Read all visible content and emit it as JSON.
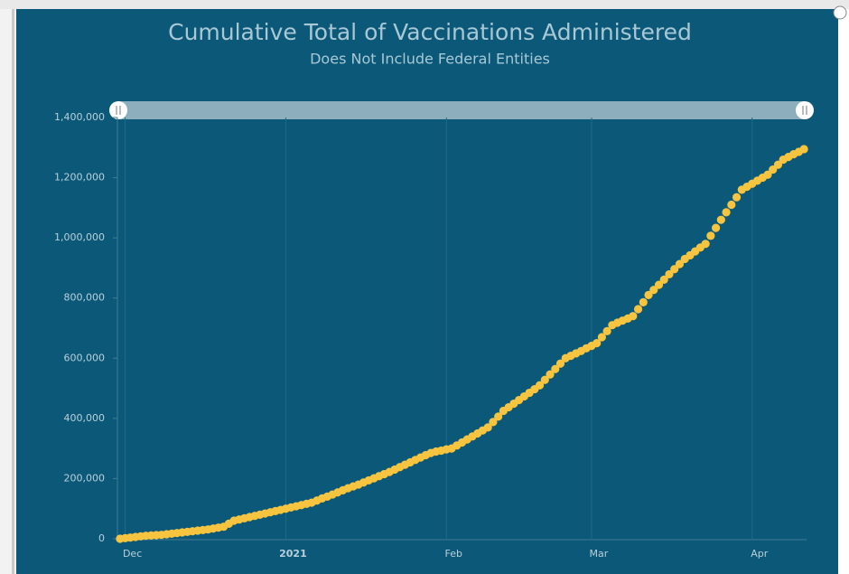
{
  "chart_data": {
    "type": "scatter",
    "title": "Cumulative Total of Vaccinations Administered",
    "subtitle": "Does Not Include Federal Entities",
    "color": "#f7c440",
    "x": [
      0,
      1,
      2,
      3,
      4,
      5,
      6,
      7,
      8,
      9,
      10,
      11,
      12,
      13,
      14,
      15,
      16,
      17,
      18,
      19,
      20,
      21,
      22,
      23,
      24,
      25,
      26,
      27,
      28,
      29,
      30,
      31,
      32,
      33,
      34,
      35,
      36,
      37,
      38,
      39,
      40,
      41,
      42,
      43,
      44,
      45,
      46,
      47,
      48,
      49,
      50,
      51,
      52,
      53,
      54,
      55,
      56,
      57,
      58,
      59,
      60,
      61,
      62,
      63,
      64,
      65,
      66,
      67,
      68,
      69,
      70,
      71,
      72,
      73,
      74,
      75,
      76,
      77,
      78,
      79,
      80,
      81,
      82,
      83,
      84,
      85,
      86,
      87,
      88,
      89,
      90,
      91,
      92,
      93,
      94,
      95,
      96,
      97,
      98,
      99,
      100,
      101,
      102,
      103,
      104,
      105,
      106,
      107,
      108,
      109,
      110,
      111,
      112,
      113,
      114,
      115,
      116,
      117,
      118,
      119,
      120,
      121,
      122,
      123,
      124,
      125,
      126,
      127,
      128,
      129,
      130,
      131,
      132
    ],
    "values": [
      0,
      2000,
      4000,
      6000,
      8000,
      10000,
      11000,
      12000,
      13000,
      15000,
      17000,
      19000,
      21000,
      23000,
      25000,
      27000,
      29000,
      31000,
      34000,
      37000,
      40000,
      50000,
      60000,
      64000,
      68000,
      72000,
      76000,
      80000,
      84000,
      88000,
      92000,
      96000,
      100000,
      104000,
      108000,
      112000,
      116000,
      120000,
      127000,
      134000,
      140000,
      147000,
      154000,
      161000,
      168000,
      174000,
      180000,
      187000,
      194000,
      201000,
      208000,
      215000,
      222000,
      230000,
      238000,
      246000,
      254000,
      262000,
      270000,
      278000,
      285000,
      290000,
      293000,
      297000,
      300000,
      310000,
      320000,
      330000,
      340000,
      350000,
      360000,
      370000,
      388000,
      406000,
      425000,
      437000,
      449000,
      461000,
      473000,
      485000,
      497000,
      510000,
      528000,
      546000,
      564000,
      582000,
      600000,
      608000,
      616000,
      624000,
      633000,
      641000,
      650000,
      670000,
      690000,
      710000,
      718000,
      725000,
      732000,
      740000,
      763000,
      786000,
      810000,
      827000,
      844000,
      861000,
      879000,
      896000,
      913000,
      930000,
      942000,
      955000,
      968000,
      980000,
      1007000,
      1033000,
      1060000,
      1085000,
      1110000,
      1135000,
      1160000,
      1170000,
      1180000,
      1190000,
      1200000,
      1210000,
      1227000,
      1243000,
      1260000,
      1269000,
      1278000,
      1286000,
      1295000
    ],
    "xlim": [
      -0.5,
      132.5
    ],
    "xticks": [
      {
        "value": 1,
        "label": "Dec"
      },
      {
        "value": 32,
        "label": "2021"
      },
      {
        "value": 63,
        "label": "Feb"
      },
      {
        "value": 91,
        "label": "Mar"
      },
      {
        "value": 122,
        "label": "Apr"
      }
    ],
    "ylim": [
      0,
      1400000
    ],
    "yticks": [
      0,
      {
        "value": 200000,
        "label": "200,000"
      },
      {
        "value": 400000,
        "label": "400,000"
      },
      {
        "value": 600000,
        "label": "600,000"
      },
      {
        "value": 800000,
        "label": "800,000"
      },
      {
        "value": 1000000,
        "label": "1,000,000"
      },
      {
        "value": 1200000,
        "label": "1,200,000"
      },
      {
        "value": 1400000,
        "label": "1,400,000"
      }
    ],
    "grid": true
  }
}
